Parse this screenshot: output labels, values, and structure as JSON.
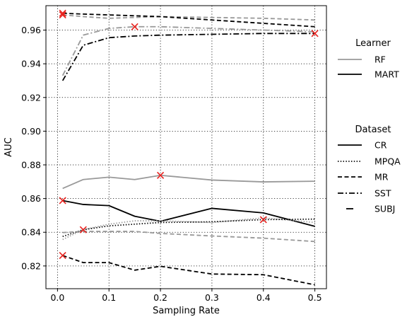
{
  "chart_data": {
    "type": "line",
    "xlabel": "Sampling Rate",
    "ylabel": "AUC",
    "xlim": [
      -0.0225,
      0.5225
    ],
    "ylim": [
      0.8065,
      0.9745
    ],
    "x_ticks": [
      0.0,
      0.1,
      0.2,
      0.3,
      0.4,
      0.5
    ],
    "x_tick_labels": [
      "0.0",
      "0.1",
      "0.2",
      "0.3",
      "0.4",
      "0.5"
    ],
    "y_ticks": [
      0.82,
      0.84,
      0.86,
      0.88,
      0.9,
      0.92,
      0.94,
      0.96
    ],
    "y_tick_labels": [
      "0.82",
      "0.84",
      "0.86",
      "0.88",
      "0.90",
      "0.92",
      "0.94",
      "0.96"
    ],
    "grid": true,
    "x": [
      0.01,
      0.05,
      0.1,
      0.15,
      0.2,
      0.3,
      0.4,
      0.5
    ],
    "legends": [
      {
        "title": "Learner",
        "placement": "right-upper",
        "entries": [
          {
            "label": "RF",
            "color": "#999999",
            "style": "solid"
          },
          {
            "label": "MART",
            "color": "#000000",
            "style": "solid"
          }
        ]
      },
      {
        "title": "Dataset",
        "placement": "right-middle",
        "entries": [
          {
            "label": "CR",
            "style": "solid"
          },
          {
            "label": "MPQA",
            "style": "dotted"
          },
          {
            "label": "MR",
            "style": "dashed"
          },
          {
            "label": "SST",
            "style": "dashdot"
          },
          {
            "label": "SUBJ",
            "style": "loosedash"
          }
        ]
      }
    ],
    "series": [
      {
        "learner": "RF",
        "dataset": "SST",
        "color": "#999999",
        "style": "dashdot",
        "values": [
          0.933,
          0.957,
          0.961,
          0.962,
          0.962,
          0.961,
          0.96,
          0.959
        ],
        "marker_index": 3
      },
      {
        "learner": "MART",
        "dataset": "SST",
        "color": "#000000",
        "style": "dashdot",
        "values": [
          0.93,
          0.951,
          0.9555,
          0.9565,
          0.957,
          0.9575,
          0.958,
          0.958
        ],
        "marker_index": 7
      },
      {
        "learner": "RF",
        "dataset": "MR",
        "color": "#999999",
        "style": "dashed",
        "values": [
          0.969,
          0.968,
          0.967,
          0.9675,
          0.968,
          0.9675,
          0.967,
          0.966
        ],
        "marker_index": 0
      },
      {
        "learner": "MART",
        "dataset": "MR",
        "color": "#000000",
        "style": "dashed",
        "values": [
          0.97,
          0.9695,
          0.969,
          0.9685,
          0.968,
          0.966,
          0.964,
          0.962
        ],
        "marker_index": 0
      },
      {
        "learner": "RF",
        "dataset": "CR",
        "color": "#999999",
        "style": "solid",
        "values": [
          0.866,
          0.8713,
          0.8727,
          0.8713,
          0.8738,
          0.871,
          0.8699,
          0.8703
        ],
        "marker_index": 4
      },
      {
        "learner": "MART",
        "dataset": "CR",
        "color": "#000000",
        "style": "solid",
        "values": [
          0.8588,
          0.8565,
          0.8558,
          0.8495,
          0.8465,
          0.8542,
          0.8515,
          0.8435
        ],
        "marker_index": 0
      },
      {
        "learner": "RF",
        "dataset": "MPQA",
        "color": "#999999",
        "style": "dotted",
        "values": [
          0.8357,
          0.8415,
          0.8448,
          0.8468,
          0.8468,
          0.8458,
          0.8485,
          0.8458
        ],
        "marker_index": 1
      },
      {
        "learner": "MART",
        "dataset": "MPQA",
        "color": "#000000",
        "style": "dotted",
        "values": [
          0.8375,
          0.8415,
          0.8438,
          0.8448,
          0.8458,
          0.8462,
          0.8475,
          0.8478
        ],
        "marker_index": 6
      },
      {
        "learner": "RF",
        "dataset": "MR",
        "color": "#999999",
        "style": "dashed",
        "values": [
          0.8398,
          0.8405,
          0.8405,
          0.8405,
          0.8393,
          0.8378,
          0.8365,
          0.8345
        ],
        "marker_index": -1
      },
      {
        "learner": "MART",
        "dataset": "MR",
        "color": "#000000",
        "style": "dashed",
        "values": [
          0.8262,
          0.822,
          0.822,
          0.8175,
          0.8198,
          0.8152,
          0.8148,
          0.8088
        ],
        "marker_index": 0
      }
    ]
  }
}
